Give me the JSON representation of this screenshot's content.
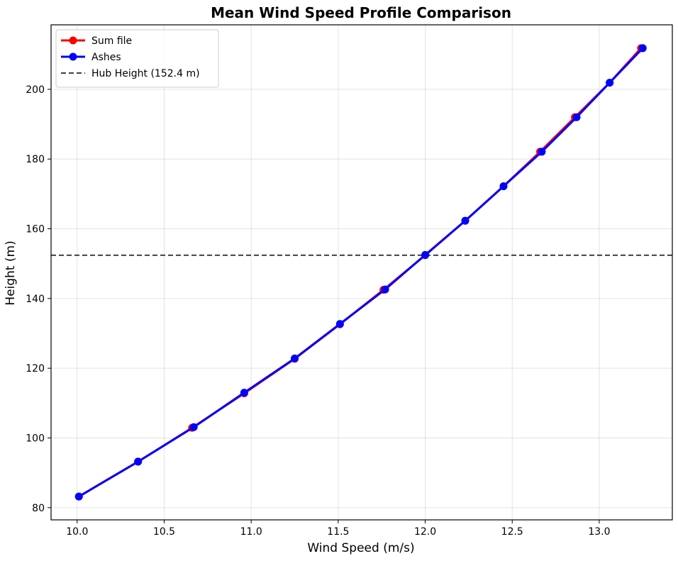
{
  "chart_data": {
    "type": "line",
    "title": "Mean Wind Speed Profile Comparison",
    "xlabel": "Wind Speed (m/s)",
    "ylabel": "Height (m)",
    "xlim": [
      9.85,
      13.42
    ],
    "ylim": [
      76.5,
      218.5
    ],
    "xticks": [
      10.0,
      10.5,
      11.0,
      11.5,
      12.0,
      12.5,
      13.0
    ],
    "xtick_labels": [
      "10.0",
      "10.5",
      "11.0",
      "11.5",
      "12.0",
      "12.5",
      "13.0"
    ],
    "yticks": [
      80,
      100,
      120,
      140,
      160,
      180,
      200
    ],
    "ytick_labels": [
      "80",
      "100",
      "120",
      "140",
      "160",
      "180",
      "200"
    ],
    "grid": true,
    "legend_position": "top-left",
    "series": [
      {
        "name": "Sum file",
        "color": "#ff0000",
        "marker": "circle",
        "x": [
          10.01,
          10.35,
          10.66,
          10.96,
          11.25,
          11.51,
          11.76,
          12.0,
          12.23,
          12.45,
          12.66,
          12.86,
          13.06,
          13.24
        ],
        "y": [
          83.2,
          93.2,
          102.9,
          112.8,
          122.7,
          132.6,
          142.5,
          152.4,
          162.3,
          172.2,
          182.1,
          192.0,
          201.9,
          211.8
        ]
      },
      {
        "name": "Ashes",
        "color": "#0000ff",
        "marker": "circle",
        "x": [
          10.01,
          10.35,
          10.67,
          10.96,
          11.25,
          11.51,
          11.77,
          12.0,
          12.23,
          12.45,
          12.67,
          12.87,
          13.06,
          13.25
        ],
        "y": [
          83.2,
          93.2,
          103.1,
          113.0,
          122.8,
          132.7,
          142.6,
          152.5,
          162.3,
          172.2,
          182.1,
          192.0,
          201.9,
          211.8
        ]
      }
    ],
    "hlines": [
      {
        "name": "Hub Height (152.4 m)",
        "y": 152.4,
        "color": "#404040",
        "style": "dashed"
      }
    ]
  }
}
